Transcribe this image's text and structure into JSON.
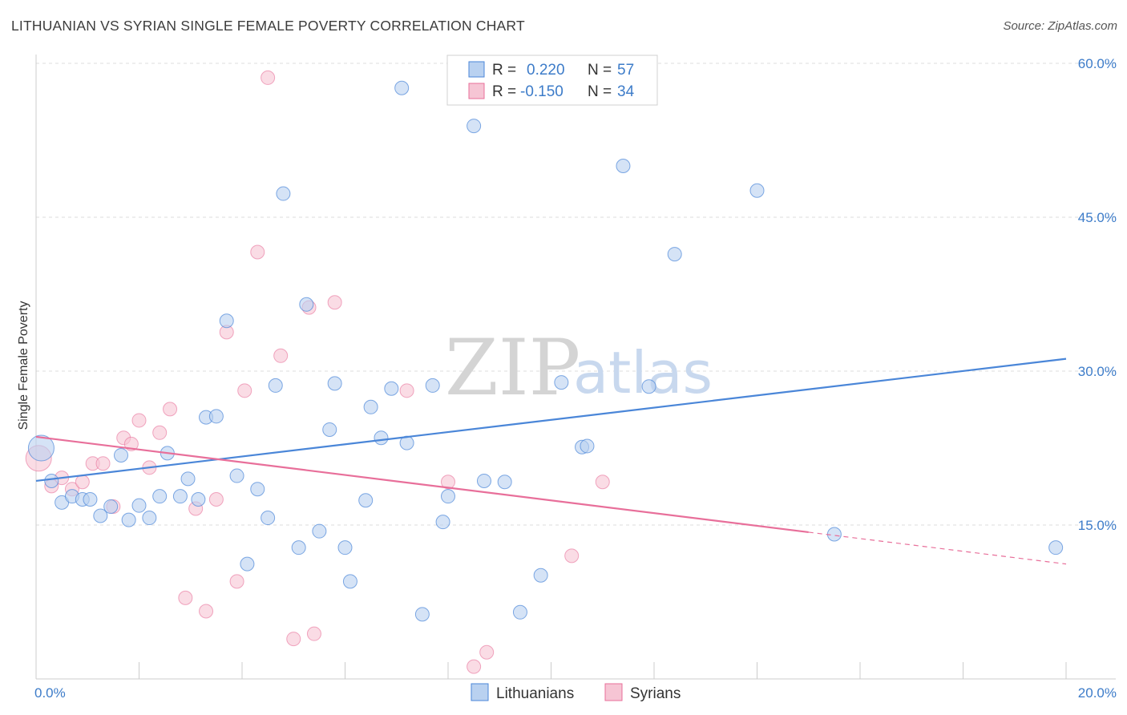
{
  "title": "LITHUANIAN VS SYRIAN SINGLE FEMALE POVERTY CORRELATION CHART",
  "source": "Source: ZipAtlas.com",
  "watermark": {
    "zip": "ZIP",
    "atlas": "atlas"
  },
  "colors": {
    "lithuanian": "#4a86d8",
    "lithuanian_fill": "#b9d1f0",
    "syrian": "#e86f9a",
    "syrian_fill": "#f6c5d4",
    "tick_text": "#3d7cc9",
    "grid": "#dddddd"
  },
  "legend_top": {
    "lithuanians": {
      "r_label": "R =",
      "r_value": "0.220",
      "n_label": "N =",
      "n_value": "57"
    },
    "syrians": {
      "r_label": "R =",
      "r_value": "-0.150",
      "n_label": "N =",
      "n_value": "34"
    }
  },
  "legend_bottom": {
    "lithuanians": "Lithuanians",
    "syrians": "Syrians"
  },
  "chart_data": {
    "type": "scatter",
    "title": "LITHUANIAN VS SYRIAN SINGLE FEMALE POVERTY CORRELATION CHART",
    "xlabel": "",
    "ylabel": "Single Female Poverty",
    "xlim": [
      0,
      20
    ],
    "ylim": [
      0,
      60
    ],
    "x_tick_labels": [
      "0.0%",
      "20.0%"
    ],
    "y_ticks": [
      15,
      30,
      45,
      60
    ],
    "y_tick_labels": [
      "15.0%",
      "30.0%",
      "45.0%",
      "60.0%"
    ],
    "series": [
      {
        "name": "Lithuanians",
        "R": 0.22,
        "N": 57,
        "trend": {
          "x0": 0,
          "y0": 19.3,
          "x1": 20,
          "y1": 31.2
        },
        "points": [
          [
            0.1,
            22.5
          ],
          [
            0.3,
            19.3
          ],
          [
            0.5,
            17.2
          ],
          [
            0.7,
            17.8
          ],
          [
            0.9,
            17.5
          ],
          [
            1.05,
            17.5
          ],
          [
            1.25,
            15.9
          ],
          [
            1.45,
            16.8
          ],
          [
            1.65,
            21.8
          ],
          [
            1.8,
            15.5
          ],
          [
            2.0,
            16.9
          ],
          [
            2.2,
            15.7
          ],
          [
            2.4,
            17.8
          ],
          [
            2.55,
            22.0
          ],
          [
            2.8,
            17.8
          ],
          [
            2.95,
            19.5
          ],
          [
            3.15,
            17.5
          ],
          [
            3.3,
            25.5
          ],
          [
            3.5,
            25.6
          ],
          [
            3.7,
            34.9
          ],
          [
            3.9,
            19.8
          ],
          [
            4.1,
            11.2
          ],
          [
            4.3,
            18.5
          ],
          [
            4.5,
            15.7
          ],
          [
            4.65,
            28.6
          ],
          [
            4.8,
            47.3
          ],
          [
            5.1,
            12.8
          ],
          [
            5.25,
            36.5
          ],
          [
            5.5,
            14.4
          ],
          [
            5.7,
            24.3
          ],
          [
            5.8,
            28.8
          ],
          [
            6.0,
            12.8
          ],
          [
            6.1,
            9.5
          ],
          [
            6.4,
            17.4
          ],
          [
            6.5,
            26.5
          ],
          [
            6.7,
            23.5
          ],
          [
            6.9,
            28.3
          ],
          [
            7.1,
            57.6
          ],
          [
            7.2,
            23.0
          ],
          [
            7.5,
            6.3
          ],
          [
            7.7,
            28.6
          ],
          [
            7.9,
            15.3
          ],
          [
            8.0,
            17.8
          ],
          [
            8.5,
            53.9
          ],
          [
            8.7,
            19.3
          ],
          [
            9.1,
            19.2
          ],
          [
            9.4,
            6.5
          ],
          [
            9.8,
            10.1
          ],
          [
            10.2,
            28.9
          ],
          [
            10.6,
            22.6
          ],
          [
            10.7,
            22.7
          ],
          [
            11.4,
            50.0
          ],
          [
            11.9,
            28.5
          ],
          [
            12.4,
            41.4
          ],
          [
            14.0,
            47.6
          ],
          [
            15.5,
            14.1
          ],
          [
            19.8,
            12.8
          ]
        ]
      },
      {
        "name": "Syrians",
        "R": -0.15,
        "N": 34,
        "trend": {
          "x0": 0,
          "y0": 23.6,
          "x1": 15.0,
          "y1": 14.3,
          "dashed_to": {
            "x": 20,
            "y": 11.2
          }
        },
        "points": [
          [
            0.05,
            21.5
          ],
          [
            0.3,
            18.8
          ],
          [
            0.5,
            19.6
          ],
          [
            0.7,
            18.5
          ],
          [
            0.9,
            19.2
          ],
          [
            1.1,
            21.0
          ],
          [
            1.3,
            21.0
          ],
          [
            1.5,
            16.8
          ],
          [
            1.7,
            23.5
          ],
          [
            1.85,
            22.9
          ],
          [
            2.0,
            25.2
          ],
          [
            2.2,
            20.6
          ],
          [
            2.4,
            24.0
          ],
          [
            2.6,
            26.3
          ],
          [
            2.9,
            7.9
          ],
          [
            3.1,
            16.6
          ],
          [
            3.3,
            6.6
          ],
          [
            3.5,
            17.5
          ],
          [
            3.7,
            33.8
          ],
          [
            3.9,
            9.5
          ],
          [
            4.05,
            28.1
          ],
          [
            4.3,
            41.6
          ],
          [
            4.5,
            58.6
          ],
          [
            4.75,
            31.5
          ],
          [
            5.0,
            3.9
          ],
          [
            5.3,
            36.2
          ],
          [
            5.4,
            4.4
          ],
          [
            5.8,
            36.7
          ],
          [
            7.2,
            28.1
          ],
          [
            8.0,
            19.2
          ],
          [
            8.5,
            1.2
          ],
          [
            8.75,
            2.6
          ],
          [
            10.4,
            12.0
          ],
          [
            11.0,
            19.2
          ]
        ]
      }
    ]
  }
}
